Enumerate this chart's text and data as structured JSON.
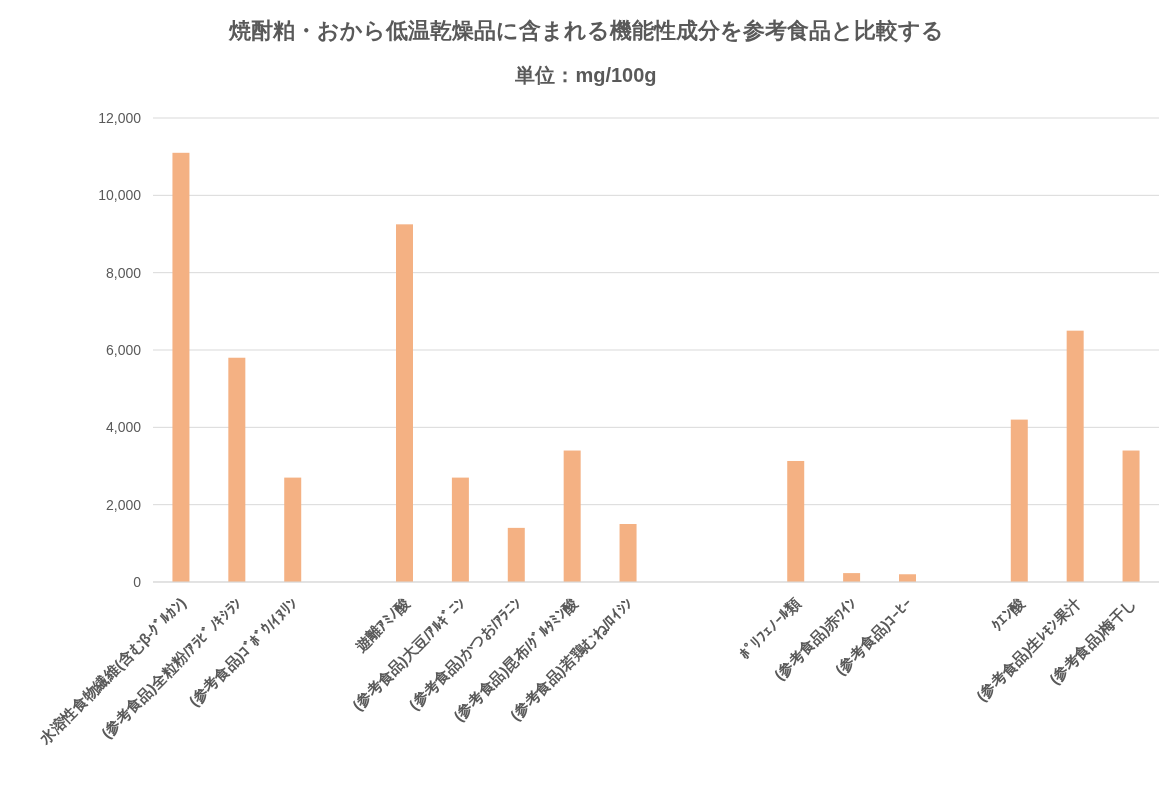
{
  "chart_data": {
    "type": "bar",
    "title": "焼酎粕・おから低温乾燥品に含まれる機能性成分を参考食品と比較する",
    "subtitle": "単位：mg/100g",
    "categories": [
      "水溶性食物繊維(含むβ-ｸﾞﾙｶﾝ)",
      "(参考食品)全粒粉/ｱﾗﾋﾞﾉｷｼﾗﾝ",
      "(参考食品)ｺﾞﾎﾞｳ/ｲﾇﾘﾝ",
      null,
      "遊離ｱﾐﾉ酸",
      "(参考食品)大豆/ｱﾙｷﾞﾆﾝ",
      "(参考食品)かつお/ｱﾗﾆﾝ",
      "(参考食品)昆布/ｸﾞﾙﾀﾐﾝ酸",
      "(参考食品)若鶏むね/ﾛｲｼﾝ",
      null,
      null,
      "ﾎﾟﾘﾌｪﾉｰﾙ類",
      "(参考食品)赤ﾜｲﾝ",
      "(参考食品)ｺｰﾋｰ",
      null,
      "ｸｴﾝ酸",
      "(参考食品)生ﾚﾓﾝ果汁",
      "(参考食品)梅干し"
    ],
    "values": [
      11100,
      5800,
      2700,
      null,
      9250,
      2700,
      1400,
      3400,
      1500,
      null,
      null,
      3130,
      230,
      200,
      null,
      4200,
      6500,
      3400
    ],
    "color": "#f4b183",
    "ylim": [
      0,
      12000
    ],
    "yticks": [
      {
        "value": 0,
        "label": "0"
      },
      {
        "value": 2000,
        "label": "2,000"
      },
      {
        "value": 4000,
        "label": "4,000"
      },
      {
        "value": 6000,
        "label": "6,000"
      },
      {
        "value": 8000,
        "label": "8,000"
      },
      {
        "value": 10000,
        "label": "10,000"
      },
      {
        "value": 12000,
        "label": "12,000"
      }
    ],
    "grid": "y"
  }
}
